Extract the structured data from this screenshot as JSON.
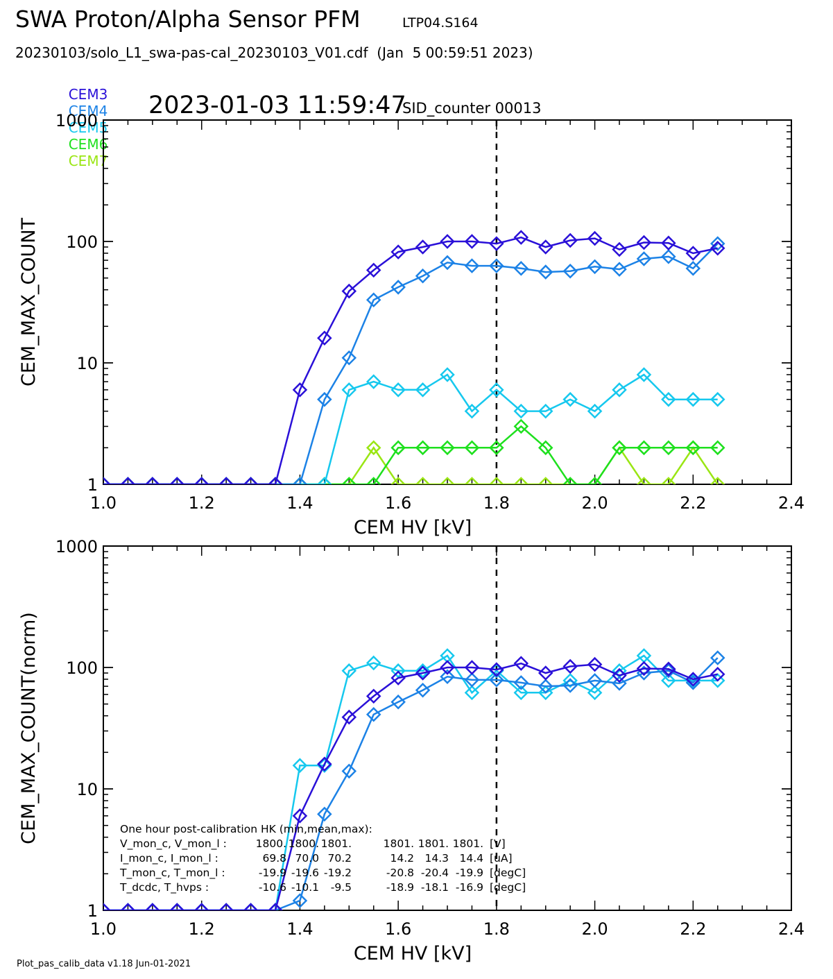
{
  "header": {
    "title": "SWA Proton/Alpha Sensor PFM",
    "subtitle": "LTP04.S164",
    "file_line": "20230103/solo_L1_swa-pas-cal_20230103_V01.cdf  (Jan  5 00:59:51 2023)",
    "timestamp": "2023-01-03 11:59:47",
    "sid_counter": "SID_counter 00013"
  },
  "legend": [
    {
      "label": "CEM3",
      "color": "#2a10d8"
    },
    {
      "label": "CEM4",
      "color": "#1c82e6"
    },
    {
      "label": "CEM5",
      "color": "#16c8ee"
    },
    {
      "label": "CEM6",
      "color": "#1ee01e"
    },
    {
      "label": "CEM7",
      "color": "#9ae614"
    }
  ],
  "footer": "Plot_pas_calib_data v1.18 Jun-01-2021",
  "chart_data": [
    {
      "type": "line",
      "ylog": true,
      "xlabel": "CEM HV [kV]",
      "ylabel": "CEM_MAX_COUNT",
      "xlim": [
        1.0,
        2.4
      ],
      "ylim": [
        1,
        1000
      ],
      "xticks": [
        "1.0",
        "1.2",
        "1.4",
        "1.6",
        "1.8",
        "2.0",
        "2.2",
        "2.4"
      ],
      "yticks": [
        "1",
        "10",
        "100",
        "1000"
      ],
      "vline": 1.8,
      "x": [
        1.0,
        1.05,
        1.1,
        1.15,
        1.2,
        1.25,
        1.3,
        1.35,
        1.4,
        1.45,
        1.5,
        1.55,
        1.6,
        1.65,
        1.7,
        1.75,
        1.8,
        1.85,
        1.9,
        1.95,
        2.0,
        2.05,
        2.1,
        2.15,
        2.2,
        2.25
      ],
      "series": [
        {
          "name": "CEM3",
          "color": "#2a10d8",
          "values": [
            1,
            1,
            1,
            1,
            1,
            1,
            1,
            1,
            6,
            16,
            39,
            58,
            82,
            90,
            100,
            100,
            96,
            108,
            90,
            102,
            106,
            86,
            98,
            97,
            80,
            88
          ]
        },
        {
          "name": "CEM4",
          "color": "#1c82e6",
          "values": [
            1,
            1,
            1,
            1,
            1,
            1,
            1,
            1,
            1,
            5,
            11,
            33,
            42,
            52,
            67,
            63,
            63,
            60,
            56,
            57,
            62,
            59,
            72,
            75,
            60,
            96
          ]
        },
        {
          "name": "CEM5",
          "color": "#16c8ee",
          "values": [
            1,
            1,
            1,
            1,
            1,
            1,
            1,
            1,
            1,
            1,
            6,
            7,
            6,
            6,
            8,
            4,
            6,
            4,
            4,
            5,
            4,
            6,
            8,
            5,
            5,
            5
          ]
        },
        {
          "name": "CEM6",
          "color": "#1ee01e",
          "values": [
            1,
            1,
            1,
            1,
            1,
            1,
            1,
            1,
            1,
            1,
            1,
            1,
            2,
            2,
            2,
            2,
            2,
            3,
            2,
            1,
            1,
            2,
            2,
            2,
            2,
            2
          ]
        },
        {
          "name": "CEM7",
          "color": "#9ae614",
          "values": [
            1,
            1,
            1,
            1,
            1,
            1,
            1,
            1,
            1,
            1,
            1,
            2,
            1,
            1,
            1,
            1,
            1,
            1,
            1,
            1,
            1,
            2,
            1,
            1,
            2,
            1
          ]
        }
      ]
    },
    {
      "type": "line",
      "ylog": true,
      "xlabel": "CEM HV [kV]",
      "ylabel": "CEM_MAX_COUNT(norm)",
      "xlim": [
        1.0,
        2.4
      ],
      "ylim": [
        1,
        1000
      ],
      "xticks": [
        "1.0",
        "1.2",
        "1.4",
        "1.6",
        "1.8",
        "2.0",
        "2.2",
        "2.4"
      ],
      "yticks": [
        "1",
        "10",
        "100",
        "1000"
      ],
      "vline": 1.8,
      "x": [
        1.0,
        1.05,
        1.1,
        1.15,
        1.2,
        1.25,
        1.3,
        1.35,
        1.4,
        1.45,
        1.5,
        1.55,
        1.6,
        1.65,
        1.7,
        1.75,
        1.8,
        1.85,
        1.9,
        1.95,
        2.0,
        2.05,
        2.1,
        2.15,
        2.2,
        2.25
      ],
      "series": [
        {
          "name": "CEM3",
          "color": "#2a10d8",
          "values": [
            1,
            1,
            1,
            1,
            1,
            1,
            1,
            1,
            6,
            16,
            39,
            58,
            82,
            90,
            100,
            100,
            96,
            108,
            90,
            102,
            106,
            86,
            98,
            97,
            80,
            88
          ]
        },
        {
          "name": "CEM4",
          "color": "#1c82e6",
          "values": [
            1,
            1,
            1,
            1,
            1,
            1,
            1,
            1,
            1.2,
            6.2,
            14,
            41,
            52,
            65,
            84,
            79,
            79,
            75,
            70,
            71,
            78,
            74,
            90,
            94,
            75,
            120
          ]
        },
        {
          "name": "CEM5",
          "color": "#16c8ee",
          "values": [
            1,
            1,
            1,
            1,
            1,
            1,
            1,
            1,
            15.6,
            15.6,
            94,
            109,
            94,
            94,
            125,
            62,
            94,
            62,
            62,
            78,
            62,
            94,
            125,
            78,
            78,
            78
          ]
        }
      ],
      "annotation": {
        "title": "One hour post-calibration HK (min,mean,max):",
        "rows": [
          {
            "label": "V_mon_c, V_mon_l :",
            "c": [
              "1800.",
              "1800.",
              "1801."
            ],
            "l": [
              "1801.",
              "1801.",
              "1801."
            ],
            "unit": "[V]"
          },
          {
            "label": "I_mon_c,  I_mon_l :",
            "c": [
              "69.8",
              "70.0",
              "70.2"
            ],
            "l": [
              "14.2",
              "14.3",
              "14.4"
            ],
            "unit": "[uA]"
          },
          {
            "label": "T_mon_c, T_mon_l :",
            "c": [
              "-19.9",
              "-19.6",
              "-19.2"
            ],
            "l": [
              "-20.8",
              "-20.4",
              "-19.9"
            ],
            "unit": "[degC]"
          },
          {
            "label": "T_dcdc,    T_hvps :",
            "c": [
              "-10.6",
              "-10.1",
              "-9.5"
            ],
            "l": [
              "-18.9",
              "-18.1",
              "-16.9"
            ],
            "unit": "[degC]"
          }
        ]
      }
    }
  ]
}
